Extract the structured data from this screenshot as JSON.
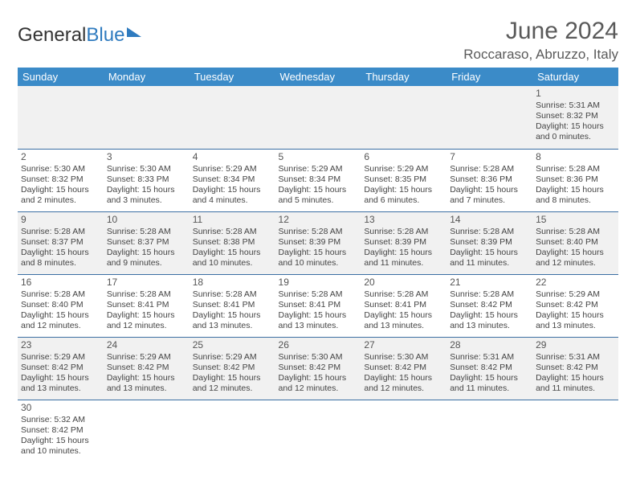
{
  "brand": {
    "part1": "General",
    "part2": "Blue"
  },
  "title": "June 2024",
  "location": "Roccaraso, Abruzzo, Italy",
  "colors": {
    "header_bg": "#3b8bc8",
    "header_text": "#ffffff",
    "row_separator": "#3b6fa3",
    "alt_row_bg": "#f1f1f1",
    "text": "#444444",
    "brand_blue": "#2f7bbf"
  },
  "day_headers": [
    "Sunday",
    "Monday",
    "Tuesday",
    "Wednesday",
    "Thursday",
    "Friday",
    "Saturday"
  ],
  "weeks": [
    [
      null,
      null,
      null,
      null,
      null,
      null,
      {
        "n": "1",
        "sr": "Sunrise: 5:31 AM",
        "ss": "Sunset: 8:32 PM",
        "d1": "Daylight: 15 hours",
        "d2": "and 0 minutes."
      }
    ],
    [
      {
        "n": "2",
        "sr": "Sunrise: 5:30 AM",
        "ss": "Sunset: 8:32 PM",
        "d1": "Daylight: 15 hours",
        "d2": "and 2 minutes."
      },
      {
        "n": "3",
        "sr": "Sunrise: 5:30 AM",
        "ss": "Sunset: 8:33 PM",
        "d1": "Daylight: 15 hours",
        "d2": "and 3 minutes."
      },
      {
        "n": "4",
        "sr": "Sunrise: 5:29 AM",
        "ss": "Sunset: 8:34 PM",
        "d1": "Daylight: 15 hours",
        "d2": "and 4 minutes."
      },
      {
        "n": "5",
        "sr": "Sunrise: 5:29 AM",
        "ss": "Sunset: 8:34 PM",
        "d1": "Daylight: 15 hours",
        "d2": "and 5 minutes."
      },
      {
        "n": "6",
        "sr": "Sunrise: 5:29 AM",
        "ss": "Sunset: 8:35 PM",
        "d1": "Daylight: 15 hours",
        "d2": "and 6 minutes."
      },
      {
        "n": "7",
        "sr": "Sunrise: 5:28 AM",
        "ss": "Sunset: 8:36 PM",
        "d1": "Daylight: 15 hours",
        "d2": "and 7 minutes."
      },
      {
        "n": "8",
        "sr": "Sunrise: 5:28 AM",
        "ss": "Sunset: 8:36 PM",
        "d1": "Daylight: 15 hours",
        "d2": "and 8 minutes."
      }
    ],
    [
      {
        "n": "9",
        "sr": "Sunrise: 5:28 AM",
        "ss": "Sunset: 8:37 PM",
        "d1": "Daylight: 15 hours",
        "d2": "and 8 minutes."
      },
      {
        "n": "10",
        "sr": "Sunrise: 5:28 AM",
        "ss": "Sunset: 8:37 PM",
        "d1": "Daylight: 15 hours",
        "d2": "and 9 minutes."
      },
      {
        "n": "11",
        "sr": "Sunrise: 5:28 AM",
        "ss": "Sunset: 8:38 PM",
        "d1": "Daylight: 15 hours",
        "d2": "and 10 minutes."
      },
      {
        "n": "12",
        "sr": "Sunrise: 5:28 AM",
        "ss": "Sunset: 8:39 PM",
        "d1": "Daylight: 15 hours",
        "d2": "and 10 minutes."
      },
      {
        "n": "13",
        "sr": "Sunrise: 5:28 AM",
        "ss": "Sunset: 8:39 PM",
        "d1": "Daylight: 15 hours",
        "d2": "and 11 minutes."
      },
      {
        "n": "14",
        "sr": "Sunrise: 5:28 AM",
        "ss": "Sunset: 8:39 PM",
        "d1": "Daylight: 15 hours",
        "d2": "and 11 minutes."
      },
      {
        "n": "15",
        "sr": "Sunrise: 5:28 AM",
        "ss": "Sunset: 8:40 PM",
        "d1": "Daylight: 15 hours",
        "d2": "and 12 minutes."
      }
    ],
    [
      {
        "n": "16",
        "sr": "Sunrise: 5:28 AM",
        "ss": "Sunset: 8:40 PM",
        "d1": "Daylight: 15 hours",
        "d2": "and 12 minutes."
      },
      {
        "n": "17",
        "sr": "Sunrise: 5:28 AM",
        "ss": "Sunset: 8:41 PM",
        "d1": "Daylight: 15 hours",
        "d2": "and 12 minutes."
      },
      {
        "n": "18",
        "sr": "Sunrise: 5:28 AM",
        "ss": "Sunset: 8:41 PM",
        "d1": "Daylight: 15 hours",
        "d2": "and 13 minutes."
      },
      {
        "n": "19",
        "sr": "Sunrise: 5:28 AM",
        "ss": "Sunset: 8:41 PM",
        "d1": "Daylight: 15 hours",
        "d2": "and 13 minutes."
      },
      {
        "n": "20",
        "sr": "Sunrise: 5:28 AM",
        "ss": "Sunset: 8:41 PM",
        "d1": "Daylight: 15 hours",
        "d2": "and 13 minutes."
      },
      {
        "n": "21",
        "sr": "Sunrise: 5:28 AM",
        "ss": "Sunset: 8:42 PM",
        "d1": "Daylight: 15 hours",
        "d2": "and 13 minutes."
      },
      {
        "n": "22",
        "sr": "Sunrise: 5:29 AM",
        "ss": "Sunset: 8:42 PM",
        "d1": "Daylight: 15 hours",
        "d2": "and 13 minutes."
      }
    ],
    [
      {
        "n": "23",
        "sr": "Sunrise: 5:29 AM",
        "ss": "Sunset: 8:42 PM",
        "d1": "Daylight: 15 hours",
        "d2": "and 13 minutes."
      },
      {
        "n": "24",
        "sr": "Sunrise: 5:29 AM",
        "ss": "Sunset: 8:42 PM",
        "d1": "Daylight: 15 hours",
        "d2": "and 13 minutes."
      },
      {
        "n": "25",
        "sr": "Sunrise: 5:29 AM",
        "ss": "Sunset: 8:42 PM",
        "d1": "Daylight: 15 hours",
        "d2": "and 12 minutes."
      },
      {
        "n": "26",
        "sr": "Sunrise: 5:30 AM",
        "ss": "Sunset: 8:42 PM",
        "d1": "Daylight: 15 hours",
        "d2": "and 12 minutes."
      },
      {
        "n": "27",
        "sr": "Sunrise: 5:30 AM",
        "ss": "Sunset: 8:42 PM",
        "d1": "Daylight: 15 hours",
        "d2": "and 12 minutes."
      },
      {
        "n": "28",
        "sr": "Sunrise: 5:31 AM",
        "ss": "Sunset: 8:42 PM",
        "d1": "Daylight: 15 hours",
        "d2": "and 11 minutes."
      },
      {
        "n": "29",
        "sr": "Sunrise: 5:31 AM",
        "ss": "Sunset: 8:42 PM",
        "d1": "Daylight: 15 hours",
        "d2": "and 11 minutes."
      }
    ],
    [
      {
        "n": "30",
        "sr": "Sunrise: 5:32 AM",
        "ss": "Sunset: 8:42 PM",
        "d1": "Daylight: 15 hours",
        "d2": "and 10 minutes."
      },
      null,
      null,
      null,
      null,
      null,
      null
    ]
  ]
}
